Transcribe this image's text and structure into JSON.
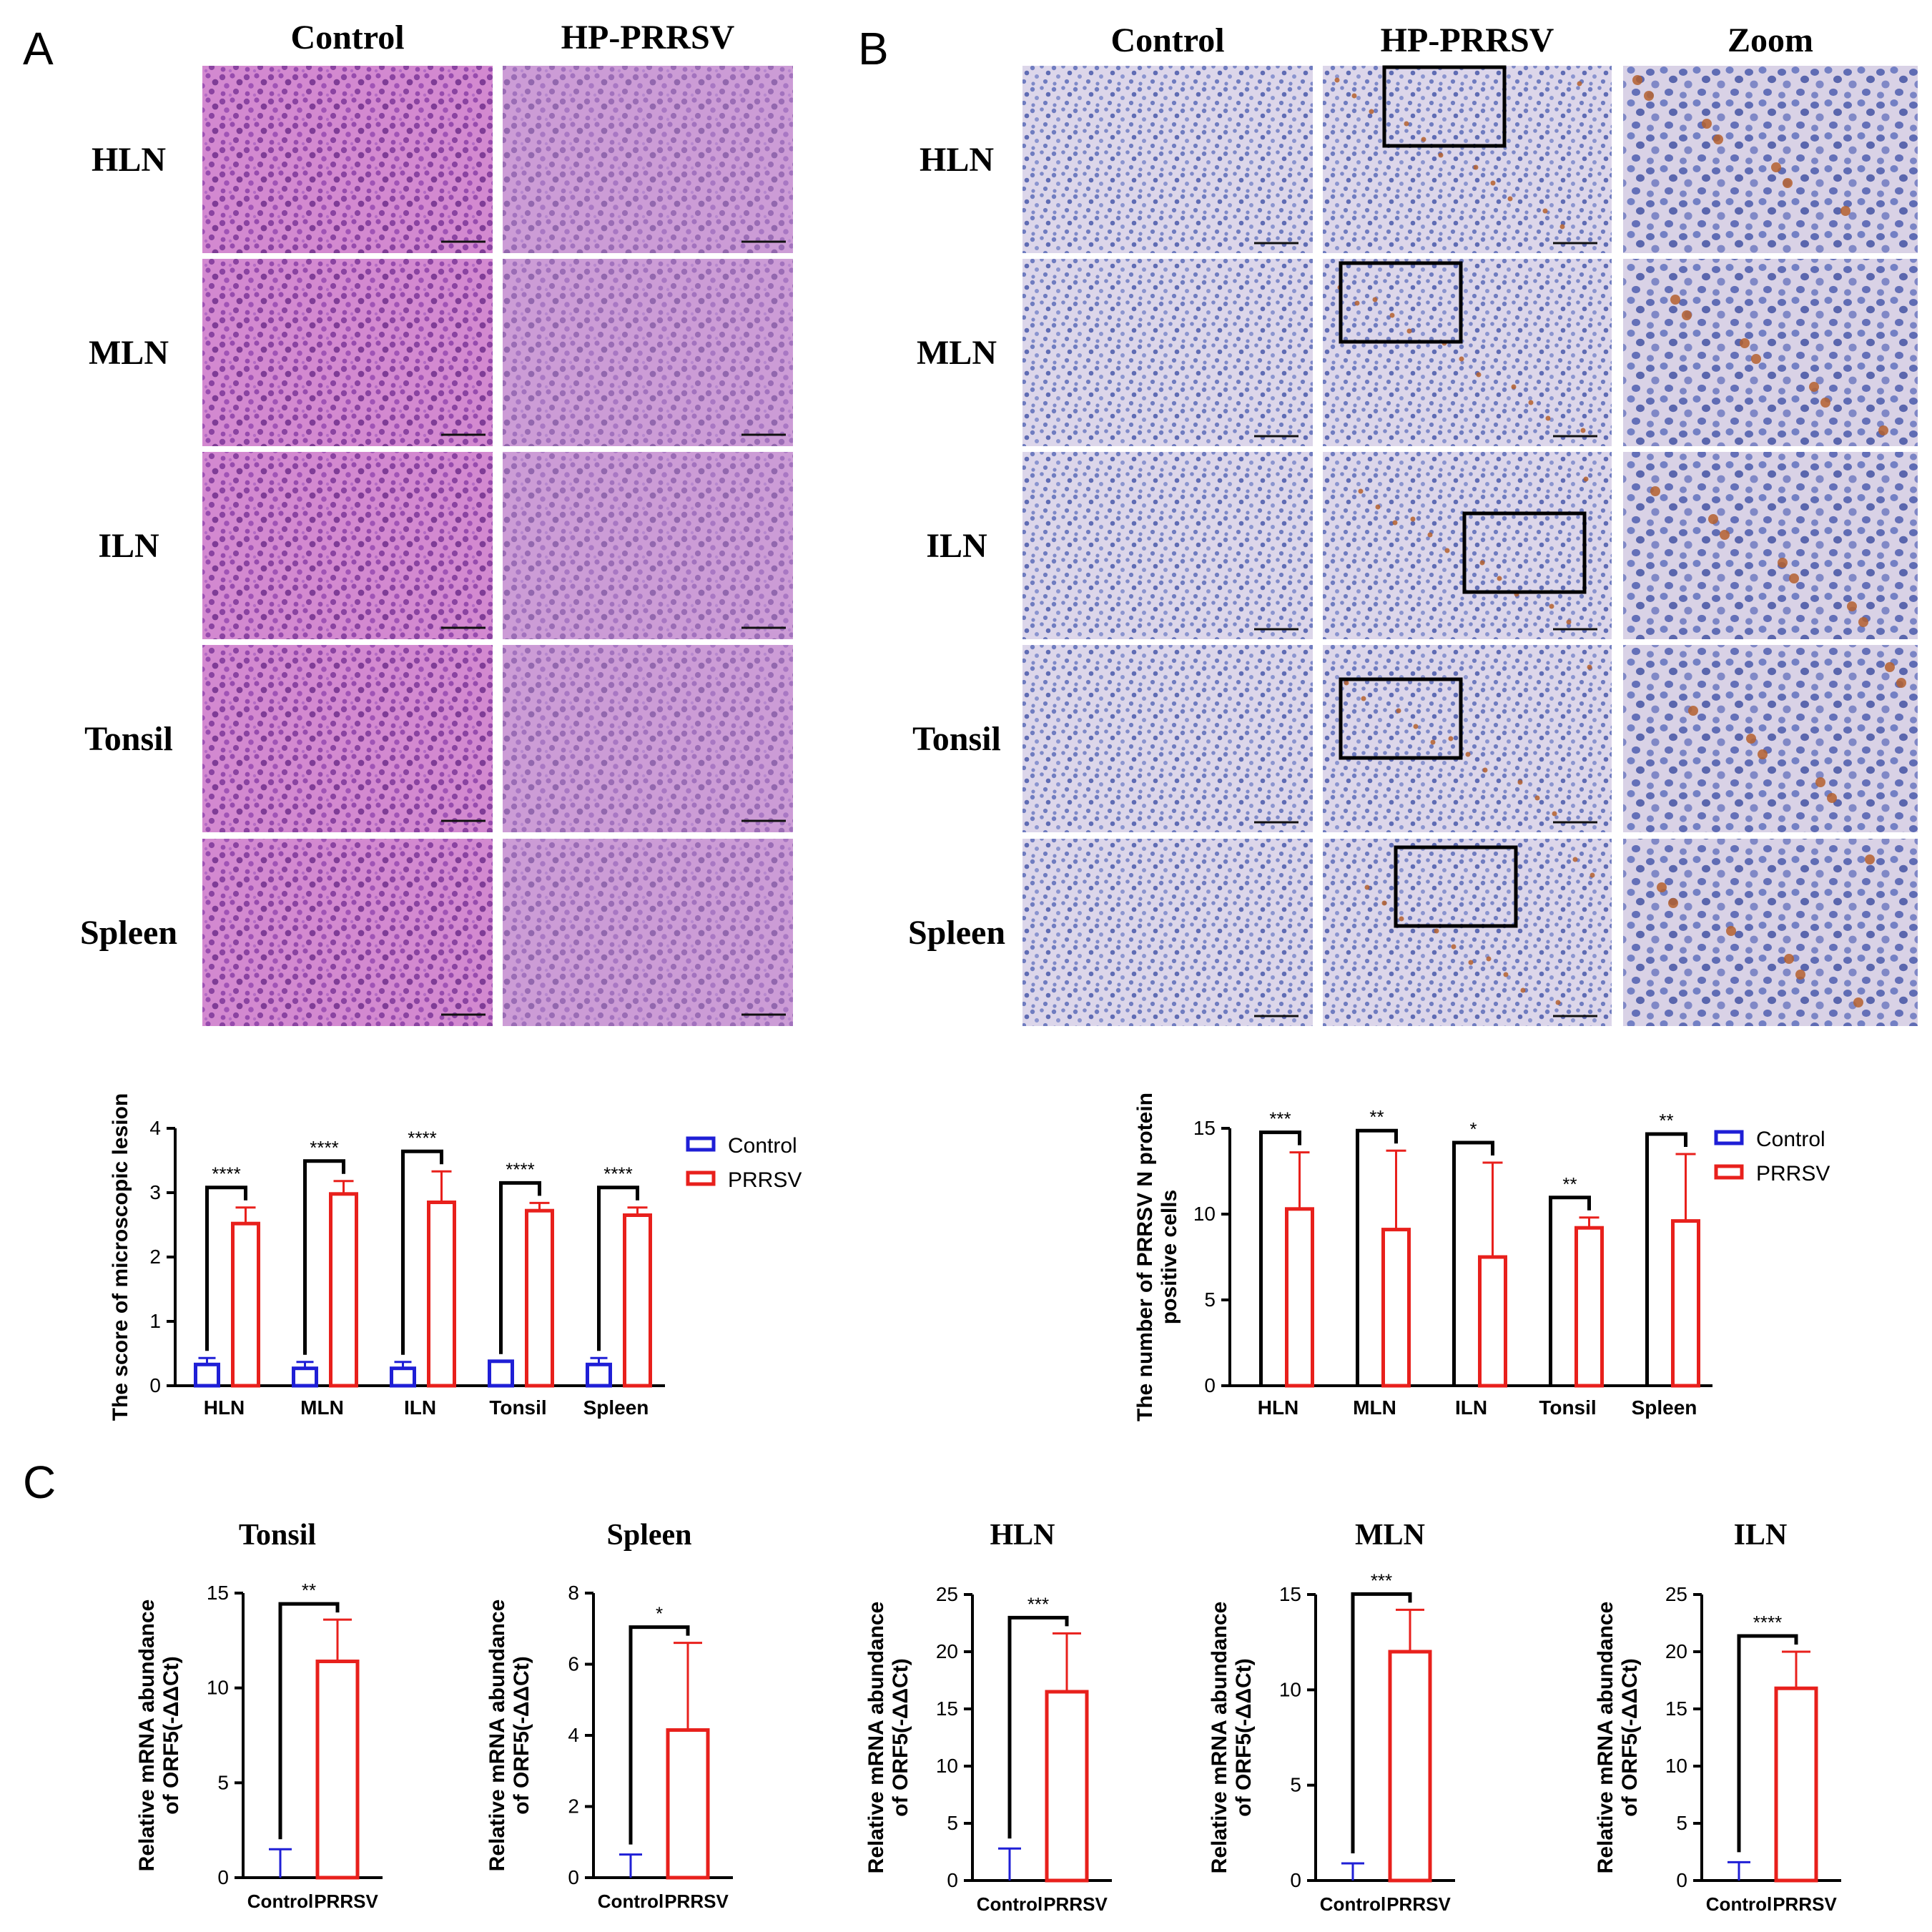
{
  "panel_letters": {
    "a": "A",
    "b": "B",
    "c": "C"
  },
  "panel_a": {
    "columns": [
      "Control",
      "HP-PRRSV"
    ],
    "rows": [
      "HLN",
      "MLN",
      "ILN",
      "Tonsil",
      "Spleen"
    ],
    "stain_colors": {
      "base": "#c987c8",
      "nuclei": "#6a2f8f",
      "control_tint": "#e07ad0",
      "infected_tint": "#c9a9dc"
    }
  },
  "panel_b": {
    "columns": [
      "Control",
      "HP-PRRSV",
      "Zoom"
    ],
    "rows": [
      "HLN",
      "MLN",
      "ILN",
      "Tonsil",
      "Spleen"
    ],
    "stain_colors": {
      "base": "#d9d4e8",
      "nuclei": "#6f7cc0",
      "positive": "#b4602e"
    }
  },
  "colors": {
    "control": "#1f1fd6",
    "prrsv": "#e8201c",
    "axis": "#000000"
  },
  "chart_data": [
    {
      "id": "a-score",
      "type": "bar",
      "categories": [
        "HLN",
        "MLN",
        "ILN",
        "Tonsil",
        "Spleen"
      ],
      "series": [
        {
          "name": "Control",
          "values": [
            0.33,
            0.27,
            0.27,
            0.38,
            0.33
          ],
          "errors": [
            0.1,
            0.1,
            0.1,
            0.0,
            0.1
          ]
        },
        {
          "name": "PRRSV",
          "values": [
            2.52,
            2.98,
            2.85,
            2.72,
            2.65
          ],
          "errors": [
            0.25,
            0.2,
            0.48,
            0.12,
            0.12
          ]
        }
      ],
      "significance": [
        "****",
        "****",
        "****",
        "****",
        "****"
      ],
      "ylabel": "The score of microscopic lesion",
      "ylim": [
        0,
        4
      ],
      "yticks": [
        0,
        1,
        2,
        3,
        4
      ],
      "legend": "right"
    },
    {
      "id": "b-count",
      "type": "bar",
      "categories": [
        "HLN",
        "MLN",
        "ILN",
        "Tonsil",
        "Spleen"
      ],
      "series": [
        {
          "name": "Control",
          "values": [
            0,
            0,
            0,
            0,
            0
          ],
          "errors": [
            0,
            0,
            0,
            0,
            0
          ]
        },
        {
          "name": "PRRSV",
          "values": [
            10.3,
            9.1,
            7.5,
            9.2,
            9.6
          ],
          "errors": [
            3.3,
            4.6,
            5.5,
            0.6,
            3.9
          ]
        }
      ],
      "significance": [
        "***",
        "**",
        "*",
        "**",
        "**"
      ],
      "ylabel": "The number of PRRSV N protein positive cells",
      "ylabel_lines": [
        "The number of PRRSV N protein",
        "positive cells"
      ],
      "ylim": [
        0,
        15
      ],
      "yticks": [
        0,
        5,
        10,
        15
      ],
      "legend": "right"
    },
    {
      "id": "c-tonsil",
      "type": "bar",
      "title": "Tonsil",
      "categories": [
        "Control",
        "PRRSV"
      ],
      "values": [
        0,
        11.4
      ],
      "errors": [
        1.5,
        2.2
      ],
      "significance": "**",
      "ylabel": "Relative mRNA abundance of ORF5(-ΔΔCt)",
      "ylabel_lines": [
        "Relative mRNA abundance",
        "of ORF5(-ΔΔCt)"
      ],
      "ylim": [
        0,
        15
      ],
      "yticks": [
        0,
        5,
        10,
        15
      ]
    },
    {
      "id": "c-spleen",
      "type": "bar",
      "title": "Spleen",
      "categories": [
        "Control",
        "PRRSV"
      ],
      "values": [
        0,
        4.15
      ],
      "errors": [
        0.65,
        2.45
      ],
      "significance": "*",
      "ylabel": "Relative mRNA abundance of ORF5(-ΔΔCt)",
      "ylabel_lines": [
        "Relative mRNA abundance",
        "of ORF5(-ΔΔCt)"
      ],
      "ylim": [
        0,
        8
      ],
      "yticks": [
        0,
        2,
        4,
        6,
        8
      ]
    },
    {
      "id": "c-hln",
      "type": "bar",
      "title": "HLN",
      "categories": [
        "Control",
        "PRRSV"
      ],
      "values": [
        0,
        16.5
      ],
      "errors": [
        2.8,
        5.1
      ],
      "significance": "***",
      "ylabel": "Relative mRNA abundance of ORF5(-ΔΔCt)",
      "ylabel_lines": [
        "Relative mRNA abundance",
        "of ORF5(-ΔΔCt)"
      ],
      "ylim": [
        0,
        25
      ],
      "yticks": [
        0,
        5,
        10,
        15,
        20,
        25
      ]
    },
    {
      "id": "c-mln",
      "type": "bar",
      "title": "MLN",
      "categories": [
        "Control",
        "PRRSV"
      ],
      "values": [
        0,
        12.0
      ],
      "errors": [
        0.9,
        2.2
      ],
      "significance": "***",
      "ylabel": "Relative mRNA abundance of ORF5(-ΔΔCt)",
      "ylabel_lines": [
        "Relative mRNA abundance",
        "of ORF5(-ΔΔCt)"
      ],
      "ylim": [
        0,
        15
      ],
      "yticks": [
        0,
        5,
        10,
        15
      ]
    },
    {
      "id": "c-iln",
      "type": "bar",
      "title": "ILN",
      "categories": [
        "Control",
        "PRRSV"
      ],
      "values": [
        0,
        16.8
      ],
      "errors": [
        1.6,
        3.2
      ],
      "significance": "****",
      "ylabel": "Relative mRNA abundance of ORF5(-ΔΔCt)",
      "ylabel_lines": [
        "Relative mRNA abundance",
        "of ORF5(-ΔΔCt)"
      ],
      "ylim": [
        0,
        25
      ],
      "yticks": [
        0,
        5,
        10,
        15,
        20,
        25
      ]
    }
  ]
}
